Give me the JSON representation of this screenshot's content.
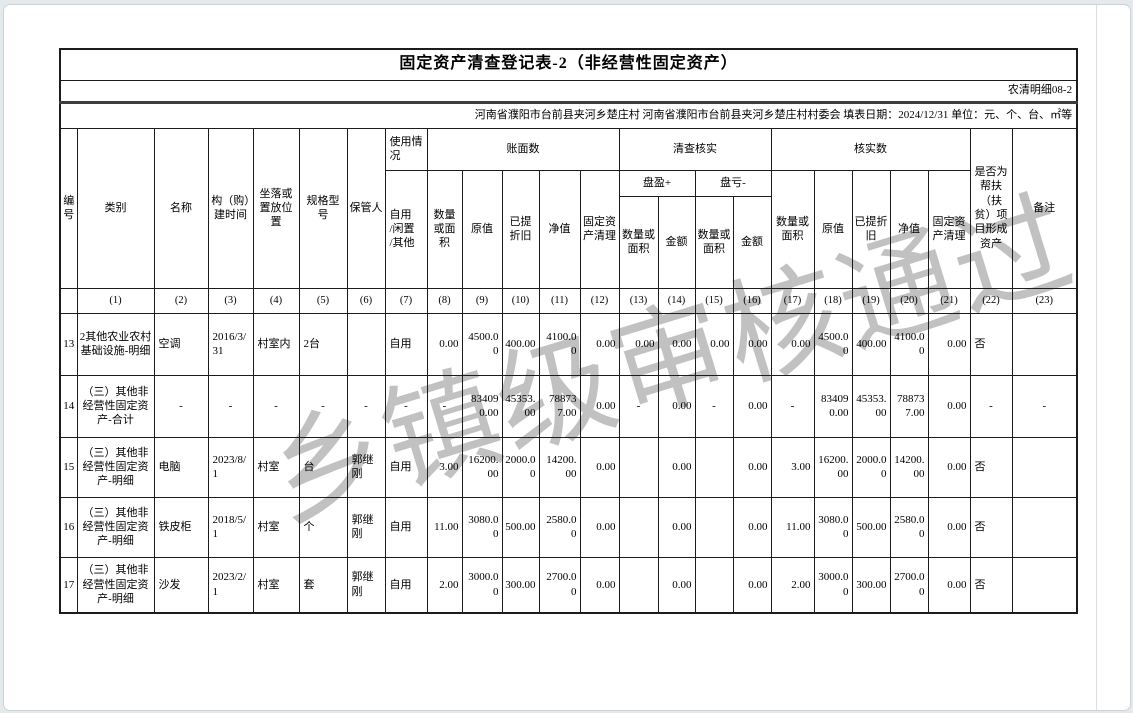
{
  "page": {
    "title": "固定资产清查登记表-2（非经营性固定资产）",
    "form_code": "农清明细08-2",
    "info_line": "河南省濮阳市台前县夹河乡楚庄村  河南省濮阳市台前县夹河乡楚庄村村委会  填表日期：2024/12/31  单位：元、个、台、㎡等",
    "watermark": "乡镇级审核通过",
    "colors": {
      "border": "#1c1c1c",
      "watermark": "#9a9a9a",
      "frame": "#ccd2d6",
      "page_bg": "#ffffff"
    }
  },
  "table": {
    "headers": {
      "no": "编号",
      "category": "类别",
      "name": "名称",
      "build_time": "构（购）建时间",
      "location": "坐落或置放位置",
      "model": "规格型号",
      "keeper": "保管人",
      "usage": "使用情况",
      "usage_sub": "自用\n/闲置\n/其他",
      "book_group": "账面数",
      "verify_group": "清查核实",
      "checked_group": "核实数",
      "surplus": "盘盈+",
      "deficit": "盘亏-",
      "qty": "数量或面积",
      "orig": "原值",
      "depr": "已提折旧",
      "net": "净值",
      "liquidation": "固定资产清理",
      "amount": "金额",
      "poverty": "是否为帮扶（扶贫）项目形成资产",
      "remark": "备注"
    },
    "col_numbers": [
      "",
      "(1)",
      "(2)",
      "(3)",
      "(4)",
      "(5)",
      "(6)",
      "(7)",
      "(8)",
      "(9)",
      "(10)",
      "(11)",
      "(12)",
      "(13)",
      "(14)",
      "(15)",
      "(16)",
      "(17)",
      "(18)",
      "(19)",
      "(20)",
      "(21)",
      "(22)",
      "(23)"
    ],
    "rows": [
      [
        "13",
        "2其他农业农村基础设施-明细",
        "空调",
        "2016/3/31",
        "村室内",
        "2台",
        "",
        "自用",
        "0.00",
        "4500.00",
        "400.00",
        "4100.00",
        "0.00",
        "0.00",
        "0.00",
        "0.00",
        "0.00",
        "0.00",
        "4500.00",
        "400.00",
        "4100.00",
        "0.00",
        "否",
        ""
      ],
      [
        "14",
        "（三）其他非经营性固定资产-合计",
        "-",
        "-",
        "-",
        "-",
        "-",
        "-",
        "-",
        "834090.00",
        "45353.00",
        "788737.00",
        "0.00",
        "-",
        "0.00",
        "-",
        "0.00",
        "-",
        "834090.00",
        "45353.00",
        "788737.00",
        "0.00",
        "-",
        "-"
      ],
      [
        "15",
        "（三）其他非经营性固定资产-明细",
        "电脑",
        "2023/8/1",
        "村室",
        "台",
        "郭继刚",
        "自用",
        "3.00",
        "16200.00",
        "2000.00",
        "14200.00",
        "0.00",
        "",
        "0.00",
        "",
        "0.00",
        "3.00",
        "16200.00",
        "2000.00",
        "14200.00",
        "0.00",
        "否",
        ""
      ],
      [
        "16",
        "（三）其他非经营性固定资产-明细",
        "铁皮柜",
        "2018/5/1",
        "村室",
        "个",
        "郭继刚",
        "自用",
        "11.00",
        "3080.00",
        "500.00",
        "2580.00",
        "0.00",
        "",
        "0.00",
        "",
        "0.00",
        "11.00",
        "3080.00",
        "500.00",
        "2580.00",
        "0.00",
        "否",
        ""
      ],
      [
        "17",
        "（三）其他非经营性固定资产-明细",
        "沙发",
        "2023/2/1",
        "村室",
        "套",
        "郭继刚",
        "自用",
        "2.00",
        "3000.00",
        "300.00",
        "2700.00",
        "0.00",
        "",
        "0.00",
        "",
        "0.00",
        "2.00",
        "3000.00",
        "300.00",
        "2700.00",
        "0.00",
        "否",
        ""
      ]
    ]
  }
}
